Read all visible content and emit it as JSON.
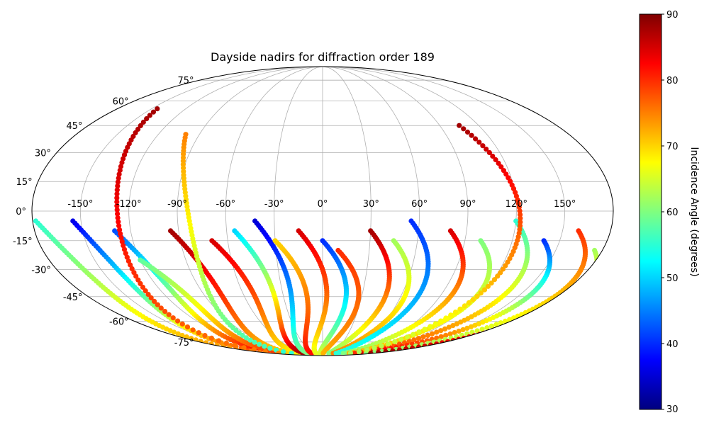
{
  "chart_data": {
    "type": "scatter",
    "projection": "mollweide",
    "title": "Dayside nadirs for diffraction order 189",
    "lon_ticks": [
      "-150°",
      "-120°",
      "-90°",
      "-60°",
      "-30°",
      "0°",
      "30°",
      "60°",
      "90°",
      "120°",
      "150°"
    ],
    "lat_ticks": [
      "75°",
      "60°",
      "45°",
      "30°",
      "15°",
      "0°",
      "-15°",
      "-30°",
      "-45°",
      "-60°",
      "-75°"
    ],
    "grid": true,
    "colorbar": {
      "label": "Incidence Angle (degrees)",
      "colormap": "jet",
      "range": [
        30,
        90
      ],
      "ticks": [
        "90",
        "80",
        "70",
        "60",
        "50",
        "40",
        "30"
      ]
    },
    "tracks": [
      {
        "lon0": -155,
        "lat0": -5,
        "incidence0": 36,
        "incidence1": 80
      },
      {
        "lon0": -130,
        "lat0": -10,
        "incidence0": 42,
        "incidence1": 85
      },
      {
        "lon0": -178,
        "lat0": -5,
        "incidence0": 55,
        "incidence1": 75
      },
      {
        "lon0": -120,
        "lat0": -25,
        "incidence0": 58,
        "incidence1": 80
      },
      {
        "lon0": -95,
        "lat0": -10,
        "incidence0": 88,
        "incidence1": 70
      },
      {
        "lon0": -70,
        "lat0": -15,
        "incidence0": 85,
        "incidence1": 68
      },
      {
        "lon0": -55,
        "lat0": -10,
        "incidence0": 50,
        "incidence1": 88
      },
      {
        "lon0": -42,
        "lat0": -5,
        "incidence0": 35,
        "incidence1": 60
      },
      {
        "lon0": -30,
        "lat0": -15,
        "incidence0": 70,
        "incidence1": 82
      },
      {
        "lon0": -15,
        "lat0": -10,
        "incidence0": 85,
        "incidence1": 66
      },
      {
        "lon0": 0,
        "lat0": -15,
        "incidence0": 40,
        "incidence1": 65
      },
      {
        "lon0": 10,
        "lat0": -20,
        "incidence0": 80,
        "incidence1": 72
      },
      {
        "lon0": 30,
        "lat0": -10,
        "incidence0": 88,
        "incidence1": 60
      },
      {
        "lon0": 45,
        "lat0": -15,
        "incidence0": 62,
        "incidence1": 75
      },
      {
        "lon0": 55,
        "lat0": -5,
        "incidence0": 40,
        "incidence1": 55
      },
      {
        "lon0": 80,
        "lat0": -10,
        "incidence0": 85,
        "incidence1": 60
      },
      {
        "lon0": 100,
        "lat0": -15,
        "incidence0": 60,
        "incidence1": 72
      },
      {
        "lon0": 120,
        "lat0": -5,
        "incidence0": 55,
        "incidence1": 80
      },
      {
        "lon0": 140,
        "lat0": -15,
        "incidence0": 40,
        "incidence1": 85
      },
      {
        "lon0": 160,
        "lat0": -10,
        "incidence0": 80,
        "incidence1": 60
      },
      {
        "lon0": 175,
        "lat0": -20,
        "incidence0": 62,
        "incidence1": 88
      },
      {
        "lon0": -100,
        "lat0": 40,
        "incidence0": 75,
        "incidence1": 55
      },
      {
        "lon0": 105,
        "lat0": 45,
        "incidence0": 88,
        "incidence1": 62
      },
      {
        "lon0": -145,
        "lat0": 55,
        "incidence0": 88,
        "incidence1": 75
      }
    ]
  }
}
